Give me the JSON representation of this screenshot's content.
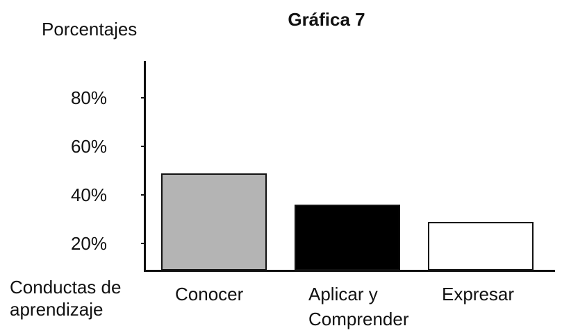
{
  "chart_data": {
    "type": "bar",
    "title": "Gráfica 7",
    "y_label": "Porcentajes",
    "x_label": "Conductas de aprendizaje",
    "categories": [
      "Conocer",
      "Aplicar y Comprender",
      "Expresar"
    ],
    "values": [
      49,
      36,
      29
    ],
    "colors": [
      "#b4b4b4",
      "#000000",
      "#ffffff"
    ],
    "ylim": [
      9,
      95
    ],
    "yticks": [
      {
        "value": 20,
        "label": "20%"
      },
      {
        "value": 40,
        "label": "40%"
      },
      {
        "value": 60,
        "label": "60%"
      },
      {
        "value": 80,
        "label": "80%"
      }
    ]
  }
}
